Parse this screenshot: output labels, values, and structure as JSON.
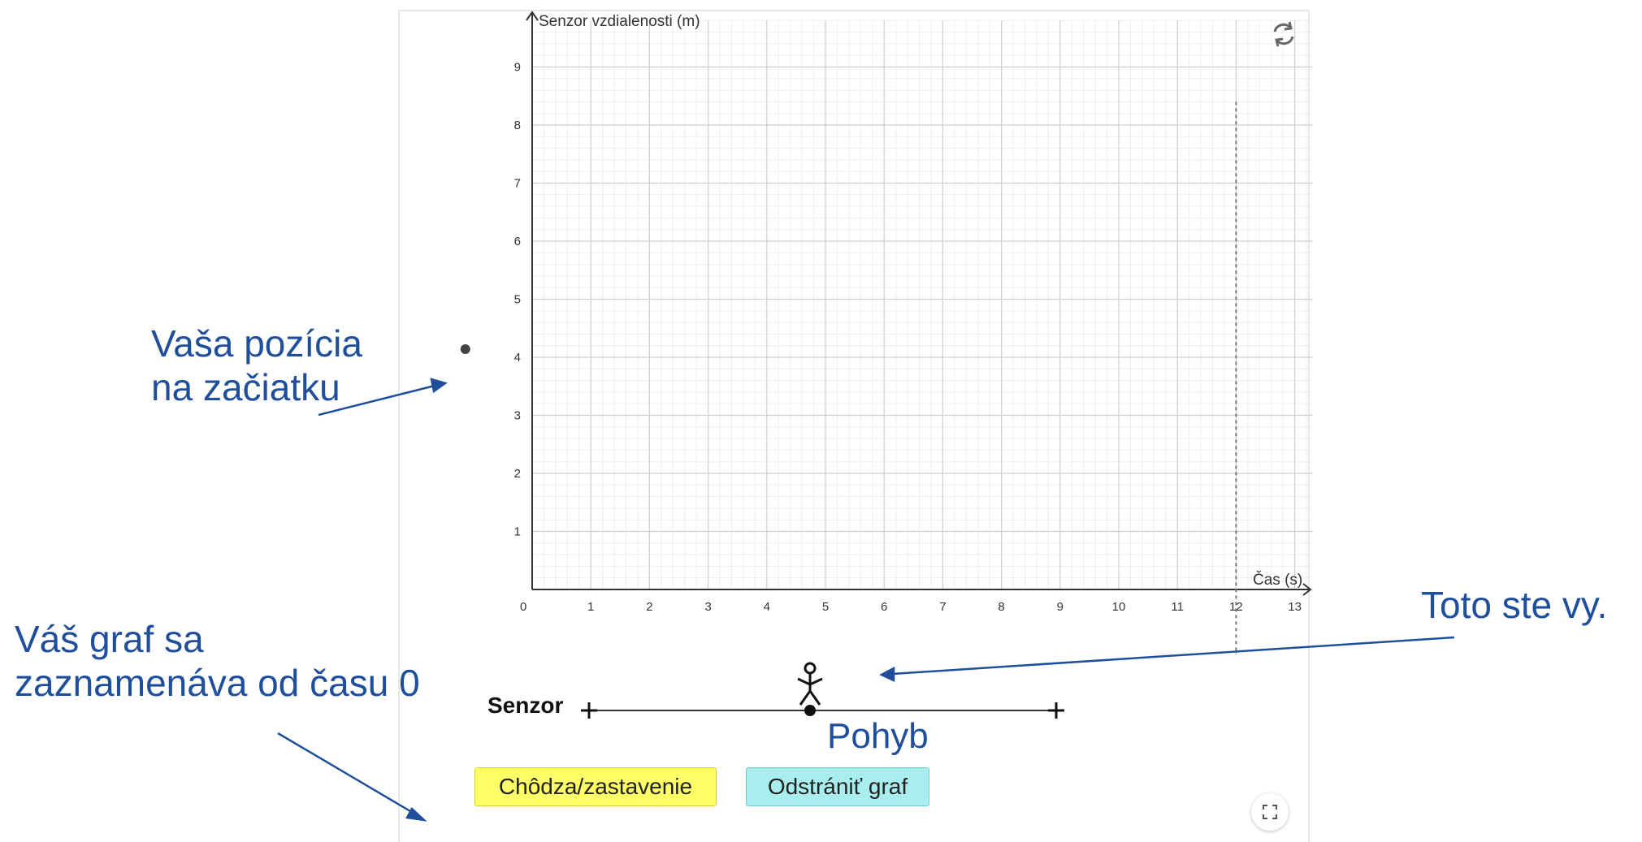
{
  "graph": {
    "y_axis_label": "Senzor vzdialenosti (m)",
    "x_axis_label": "Čas (s)",
    "origin_label": "0",
    "x_ticks": [
      "1",
      "2",
      "3",
      "4",
      "5",
      "6",
      "7",
      "8",
      "9",
      "10",
      "11",
      "12",
      "13"
    ],
    "y_ticks": [
      "1",
      "2",
      "3",
      "4",
      "5",
      "6",
      "7",
      "8",
      "9"
    ],
    "x_range": [
      0,
      13.3
    ],
    "y_range": [
      0,
      9.8
    ],
    "time_limit_marker": 12,
    "start_point": {
      "x": -1,
      "y": 4
    },
    "grid": true,
    "minor_grid_step": 0.2,
    "major_grid_step": 1
  },
  "track": {
    "label": "Senzor",
    "motion_label": "Pohyb"
  },
  "buttons": {
    "walk_stop": "Chôdza/zastavenie",
    "clear_graph": "Odstrániť graf"
  },
  "annotations": {
    "start_position": [
      "Vaša pozícia",
      "na začiatku"
    ],
    "recording": [
      "Váš graf sa",
      "zaznamenáva od času 0"
    ],
    "you": "Toto ste vy."
  },
  "colors": {
    "annotation": "#1f4e9b",
    "walk_button": "#ffff66",
    "clear_button": "#a8eeee",
    "grid_major": "#cfcfcf",
    "grid_minor": "#eeeeee"
  },
  "icons": {
    "reset": "reset-icon",
    "fullscreen": "fullscreen-icon",
    "walker": "stick-figure-icon"
  }
}
